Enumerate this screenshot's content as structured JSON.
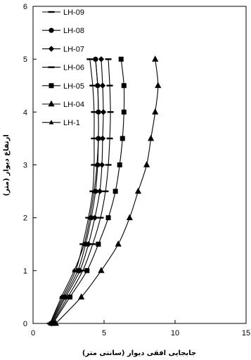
{
  "chart_data": {
    "type": "line",
    "xlabel": "جابجایی افقی دیوار (سانتی متر)",
    "ylabel": "ارتفاع دیوار (متر)",
    "xlim": [
      0,
      15
    ],
    "ylim": [
      0,
      6
    ],
    "xticks": [
      "0",
      "5",
      "10",
      "15"
    ],
    "yticks": [
      "0",
      "1",
      "2",
      "3",
      "4",
      "5",
      "6"
    ],
    "grid": false,
    "legend_position": "top-left",
    "y": [
      0,
      0.5,
      1,
      1.5,
      2,
      2.5,
      3,
      3.5,
      4,
      4.5,
      5
    ],
    "series": [
      {
        "name": "LH-09",
        "marker": "dash",
        "x": [
          1.2,
          2.1,
          3.0,
          3.5,
          3.9,
          4.2,
          4.3,
          4.3,
          4.3,
          4.2,
          4.0
        ]
      },
      {
        "name": "LH-08",
        "marker": "circle",
        "x": [
          1.25,
          2.2,
          3.15,
          3.7,
          4.1,
          4.4,
          4.55,
          4.6,
          4.6,
          4.55,
          4.4
        ]
      },
      {
        "name": "LH-07",
        "marker": "diamond",
        "x": [
          1.3,
          2.3,
          3.3,
          3.9,
          4.35,
          4.7,
          4.85,
          4.9,
          4.95,
          4.9,
          4.8
        ]
      },
      {
        "name": "LH-06",
        "marker": "dash",
        "x": [
          1.35,
          2.45,
          3.5,
          4.2,
          4.75,
          5.1,
          5.3,
          5.4,
          5.45,
          5.4,
          5.3
        ]
      },
      {
        "name": "LH-05",
        "marker": "square",
        "x": [
          1.4,
          2.6,
          3.8,
          4.6,
          5.3,
          5.8,
          6.1,
          6.3,
          6.4,
          6.4,
          6.2
        ]
      },
      {
        "name": "LH-04",
        "marker": "triangle",
        "x": [
          1.6,
          3.4,
          4.8,
          6.0,
          6.8,
          7.4,
          8.0,
          8.3,
          8.6,
          8.8,
          8.6
        ]
      },
      {
        "name": "LH-1",
        "marker": "triangle-small",
        "x": [
          1.2,
          2.0,
          2.9,
          3.6,
          4.0,
          4.3,
          4.5,
          4.6,
          4.6,
          4.55,
          4.4
        ]
      }
    ]
  }
}
